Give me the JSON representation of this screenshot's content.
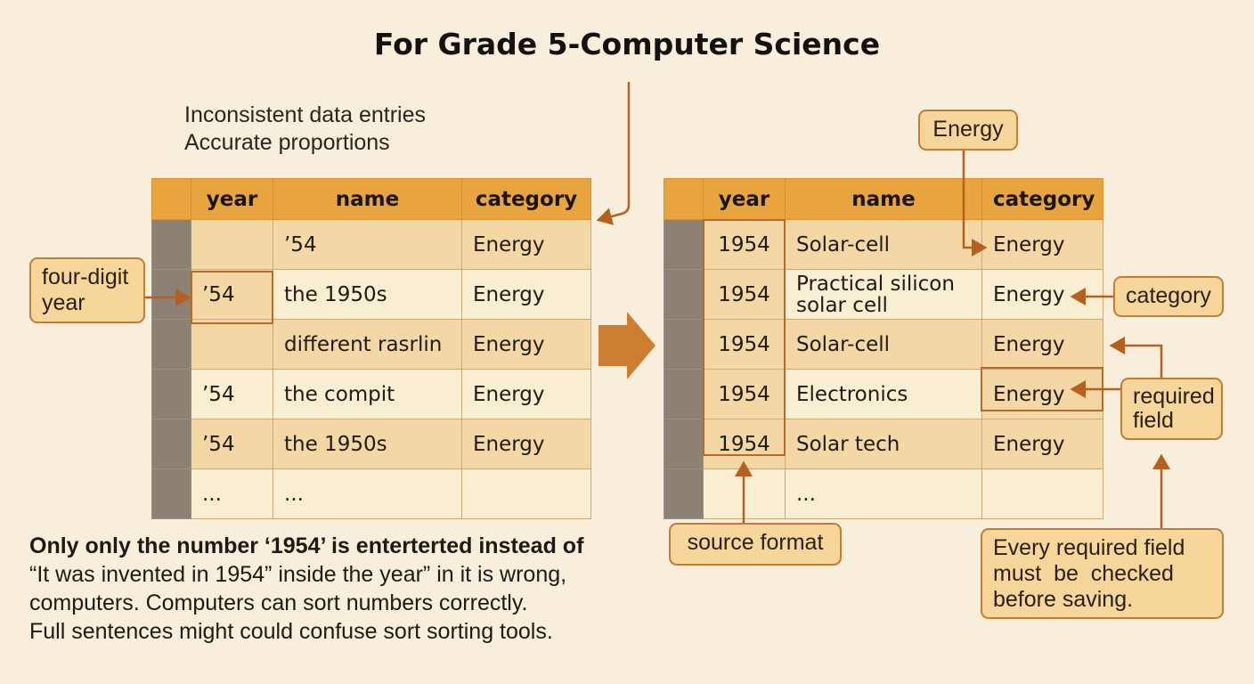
{
  "title": "For Grade 5-Computer Science",
  "notes": [
    "Inconsistent data entries",
    "Accurate proportions"
  ],
  "left_table": {
    "headers": [
      "year",
      "name",
      "category"
    ],
    "rows": [
      {
        "year": "",
        "name": "’54",
        "category": "Energy"
      },
      {
        "year": "’54",
        "name": "the 1950s",
        "category": "Energy"
      },
      {
        "year": "",
        "name": "different rasrlin",
        "category": "Energy"
      },
      {
        "year": "’54",
        "name": "the compit",
        "category": "Energy"
      },
      {
        "year": "’54",
        "name": "the 1950s",
        "category": "Energy"
      },
      {
        "year": "...",
        "name": "...",
        "category": ""
      }
    ]
  },
  "right_table": {
    "headers": [
      "year",
      "name",
      "category"
    ],
    "rows": [
      {
        "year": "1954",
        "name": "Solar-cell",
        "category": "Energy"
      },
      {
        "year": "1954",
        "name": "Practical silicon solar cell",
        "category": "Energy"
      },
      {
        "year": "1954",
        "name": "Solar-cell",
        "category": "Energy"
      },
      {
        "year": "1954",
        "name": "Electronics",
        "category": "Energy"
      },
      {
        "year": "1954",
        "name": "Solar tech",
        "category": "Energy"
      },
      {
        "year": "",
        "name": "...",
        "category": ""
      }
    ]
  },
  "callouts": {
    "four_digit_year": [
      "four-digit",
      "year"
    ],
    "energy": "Energy",
    "category": "category",
    "required_field": [
      "required",
      "field"
    ],
    "source_format": "source format",
    "every_required": [
      "Every required field",
      "must  be  checked",
      "before saving."
    ]
  },
  "paragraph": [
    "Only only the number ‘1954’ is enterterted instead of",
    "“It was invented in 1954” inside the year” in it is wrong,",
    "computers. Computers can sort numbers correctly.",
    "Full sentences might could confuse sort sorting tools."
  ],
  "colors": {
    "accent": "#e8a43e",
    "arrow": "#b5601f",
    "background": "#f7eedb"
  }
}
